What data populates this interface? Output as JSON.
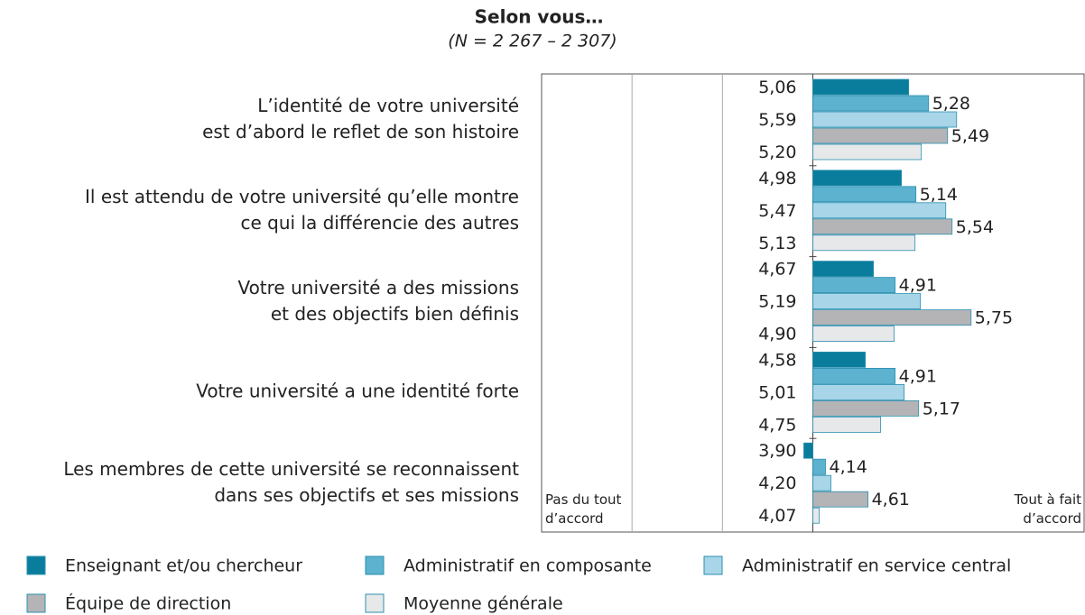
{
  "chart_data": {
    "type": "bar",
    "orientation": "horizontal",
    "title": "Selon vous…",
    "subtitle": "(N = 2 267 – 2 307)",
    "categories": [
      "L’identité de votre université\nest d’abord le reflet de son histoire",
      "Il est attendu de votre université qu’elle montre\nce qui la différencie des autres",
      "Votre université a des missions\net des objectifs bien définis",
      "Votre université a une identité forte",
      "Les membres de cette université se reconnaissent\ndans ses objectifs et ses missions"
    ],
    "series": [
      {
        "name": "Enseignant et/ou chercheur",
        "color": "#0a7d9c",
        "values": [
          5.06,
          4.98,
          4.67,
          4.58,
          3.9
        ],
        "value_labels": [
          "5,06",
          "4,98",
          "4,67",
          "4,58",
          "3,90"
        ]
      },
      {
        "name": "Administratif en composante",
        "color": "#5cb2cf",
        "values": [
          5.28,
          5.14,
          4.91,
          4.91,
          4.14
        ],
        "value_labels": [
          "5,28",
          "5,14",
          "4,91",
          "4,91",
          "4,14"
        ]
      },
      {
        "name": "Administratif en service central",
        "color": "#a8d5e8",
        "values": [
          5.59,
          5.47,
          5.19,
          5.01,
          4.2
        ],
        "value_labels": [
          "5,59",
          "5,47",
          "5,19",
          "5,01",
          "4,20"
        ]
      },
      {
        "name": "Équipe de direction",
        "color": "#b4b4b6",
        "values": [
          5.49,
          5.54,
          5.75,
          5.17,
          4.61
        ],
        "value_labels": [
          "5,49",
          "5,54",
          "5,75",
          "5,17",
          "4,61"
        ]
      },
      {
        "name": "Moyenne générale",
        "color": "#e6e8e9",
        "values": [
          5.2,
          5.13,
          4.9,
          4.75,
          4.07
        ],
        "value_labels": [
          "5,20",
          "5,13",
          "4,90",
          "4,75",
          "4,07"
        ]
      }
    ],
    "xlim": [
      1,
      7
    ],
    "xticks": [
      2,
      3,
      4
    ],
    "bar_base": 4,
    "grid": true,
    "x_axis_labels": {
      "low": "Pas du tout\nd’accord",
      "high": "Tout à fait\nd’accord"
    },
    "legend": "bottom"
  }
}
